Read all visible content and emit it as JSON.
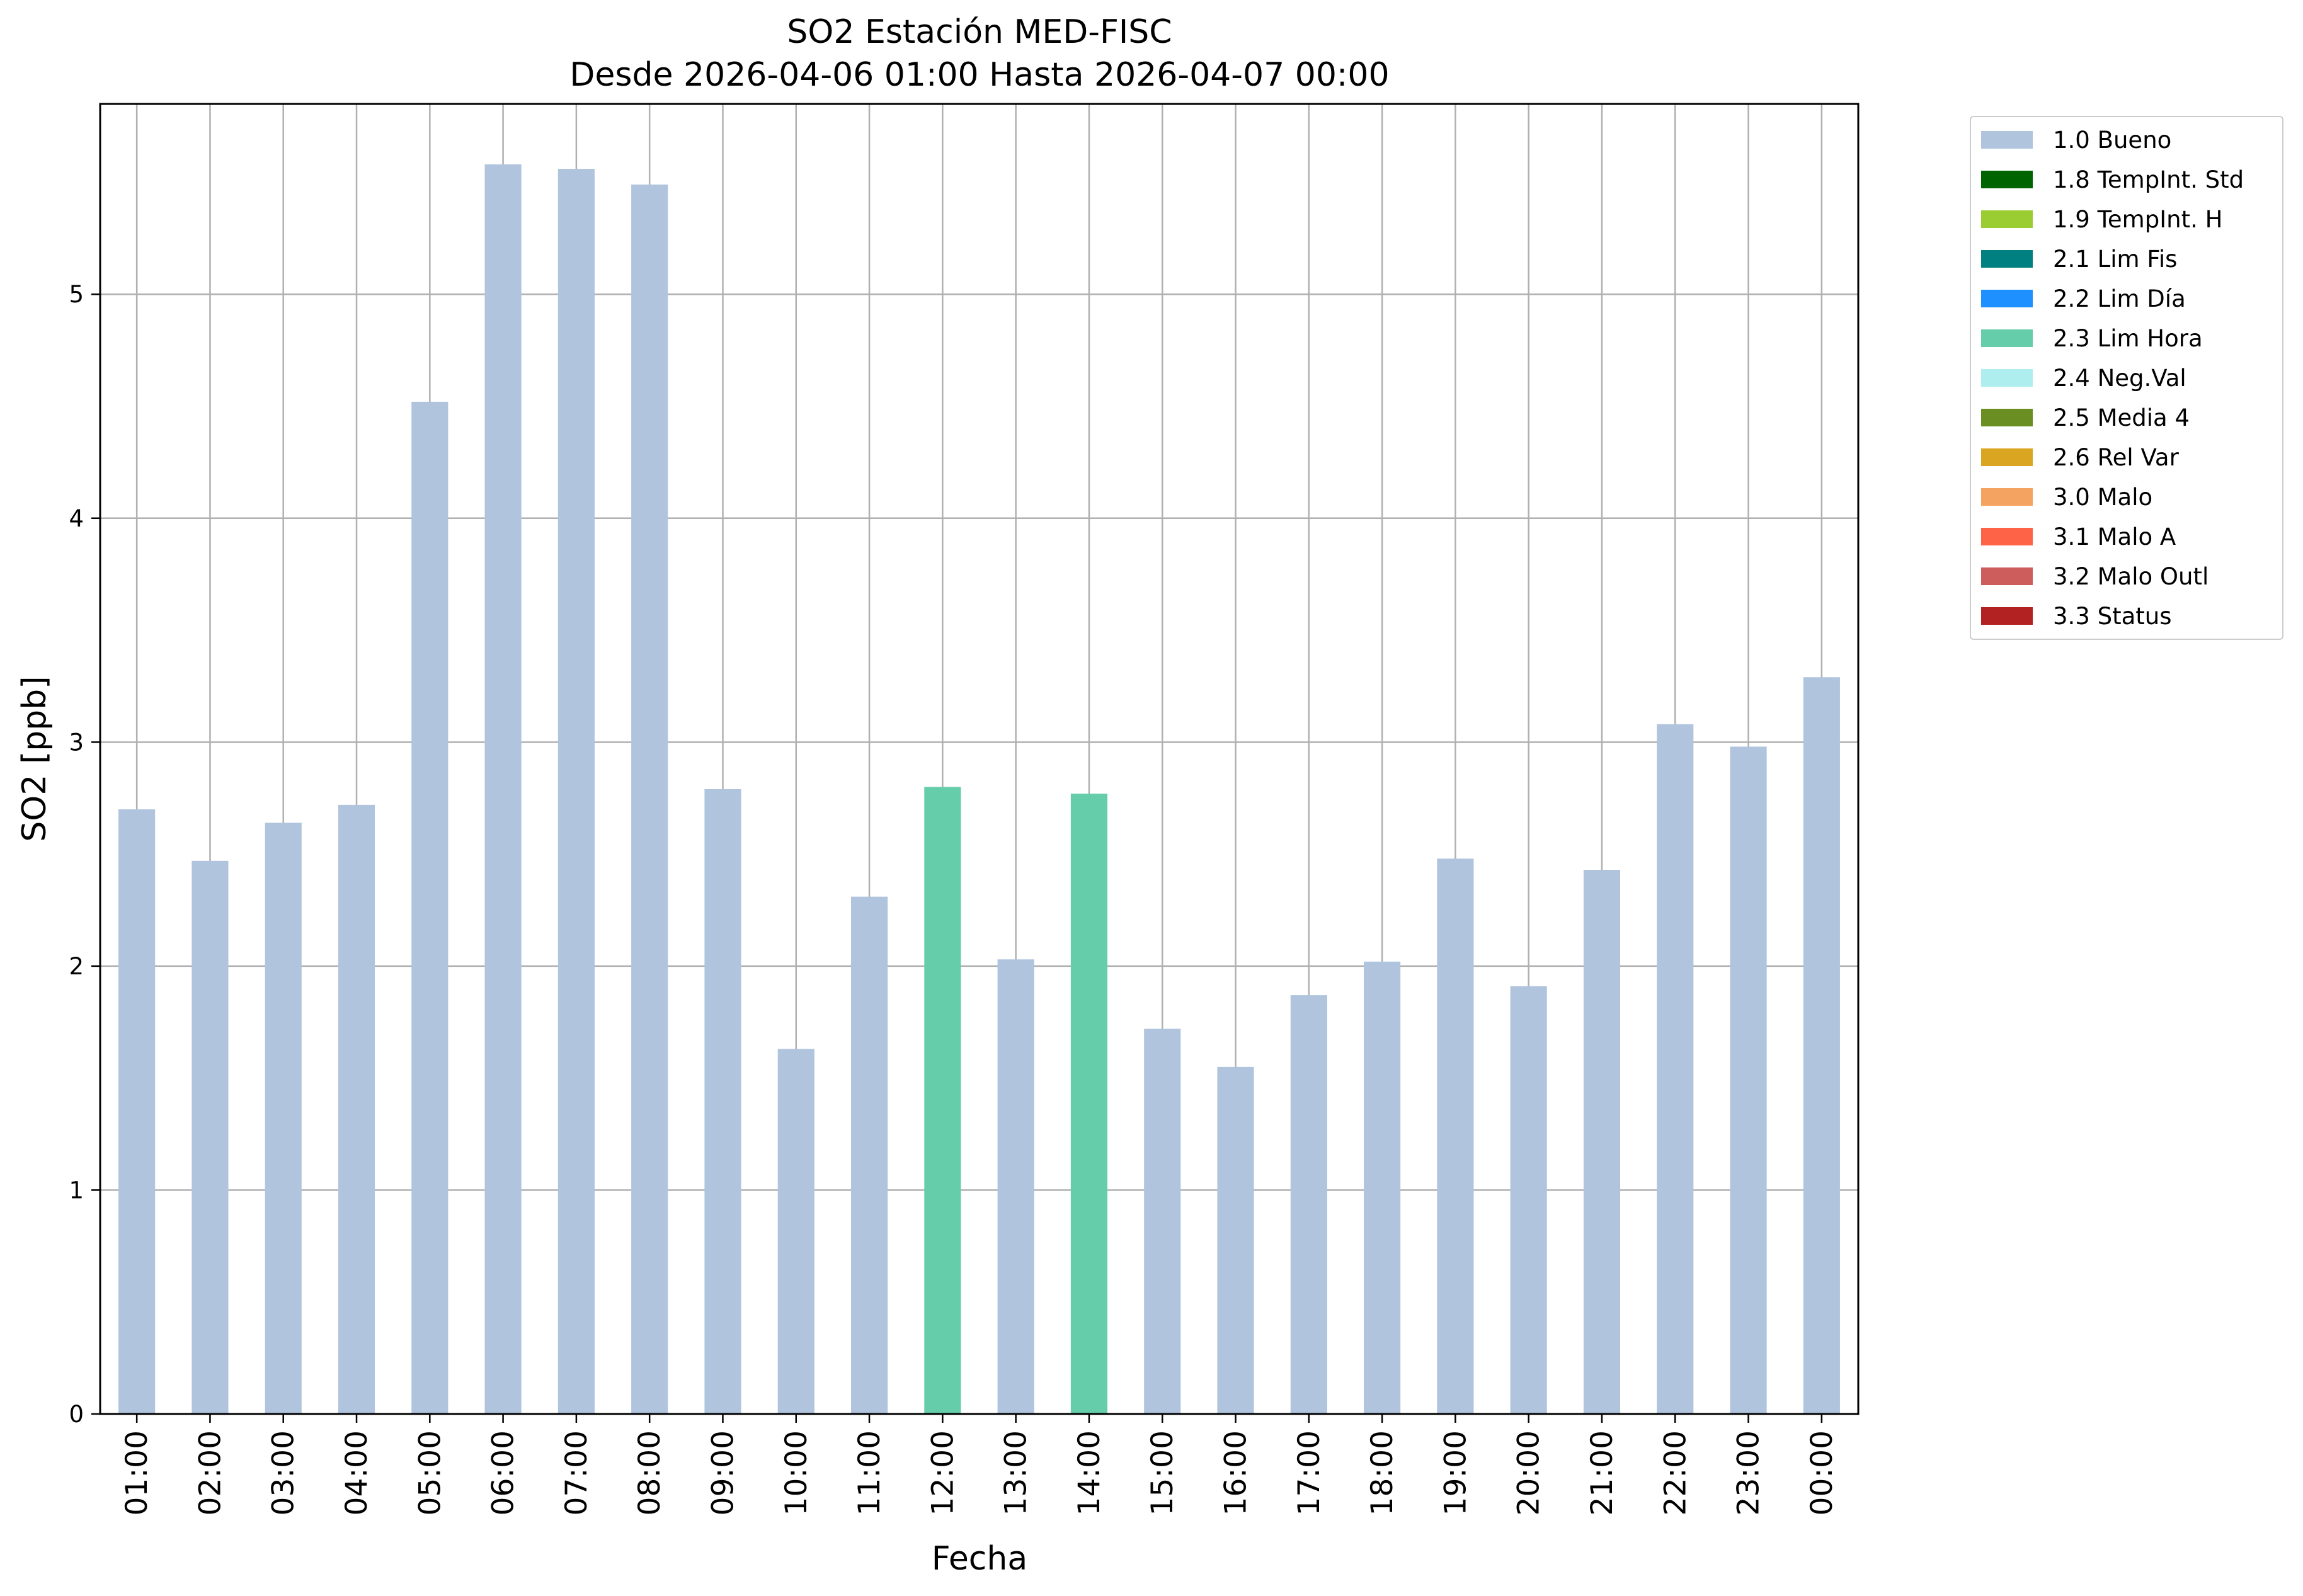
{
  "chart_data": {
    "type": "bar",
    "title": "SO2 Estación MED-FISC",
    "subtitle": "Desde 2026-04-06 01:00 Hasta 2026-04-07 00:00",
    "xlabel": "Fecha",
    "ylabel": "SO2 [ppb]",
    "ylim": [
      0,
      5.85
    ],
    "yticks": [
      "0",
      "1",
      "2",
      "3",
      "4",
      "5"
    ],
    "grid": true,
    "legend_position": "outside-top-right",
    "categories": [
      "01:00",
      "02:00",
      "03:00",
      "04:00",
      "05:00",
      "06:00",
      "07:00",
      "08:00",
      "09:00",
      "10:00",
      "11:00",
      "12:00",
      "13:00",
      "14:00",
      "15:00",
      "16:00",
      "17:00",
      "18:00",
      "19:00",
      "20:00",
      "21:00",
      "22:00",
      "23:00",
      "00:00"
    ],
    "values": [
      2.7,
      2.47,
      2.64,
      2.72,
      4.52,
      5.58,
      5.56,
      5.49,
      2.79,
      1.63,
      2.31,
      2.8,
      2.03,
      2.77,
      1.72,
      1.55,
      1.87,
      2.02,
      2.48,
      1.91,
      2.43,
      3.08,
      2.98,
      3.29
    ],
    "flags": [
      "1.0",
      "1.0",
      "1.0",
      "1.0",
      "1.0",
      "1.0",
      "1.0",
      "1.0",
      "1.0",
      "1.0",
      "1.0",
      "2.3",
      "1.0",
      "2.3",
      "1.0",
      "1.0",
      "1.0",
      "1.0",
      "1.0",
      "1.0",
      "1.0",
      "1.0",
      "1.0",
      "1.0"
    ],
    "legend": [
      {
        "code": "1.0",
        "label": "1.0 Bueno",
        "color": "#b0c4de"
      },
      {
        "code": "1.8",
        "label": "1.8 TempInt. Std",
        "color": "#006400"
      },
      {
        "code": "1.9",
        "label": "1.9 TempInt. H",
        "color": "#9acd32"
      },
      {
        "code": "2.1",
        "label": "2.1 Lim Fis",
        "color": "#008080"
      },
      {
        "code": "2.2",
        "label": "2.2 Lim Día",
        "color": "#1e90ff"
      },
      {
        "code": "2.3",
        "label": "2.3 Lim Hora",
        "color": "#66cdaa"
      },
      {
        "code": "2.4",
        "label": "2.4 Neg.Val",
        "color": "#afeeee"
      },
      {
        "code": "2.5",
        "label": "2.5 Media 4",
        "color": "#6b8e23"
      },
      {
        "code": "2.6",
        "label": "2.6 Rel Var",
        "color": "#daa520"
      },
      {
        "code": "3.0",
        "label": "3.0 Malo",
        "color": "#f4a460"
      },
      {
        "code": "3.1",
        "label": "3.1 Malo A",
        "color": "#ff6347"
      },
      {
        "code": "3.2",
        "label": "3.2 Malo Outl",
        "color": "#cd5c5c"
      },
      {
        "code": "3.3",
        "label": "3.3 Status",
        "color": "#b22222"
      }
    ]
  }
}
